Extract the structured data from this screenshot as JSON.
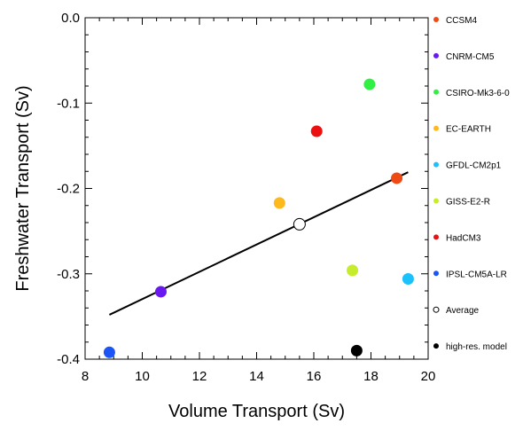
{
  "chart_data": {
    "type": "scatter",
    "xlabel": "Volume Transport (Sv)",
    "ylabel": "Freshwater Transport (Sv)",
    "xlim": [
      8,
      20
    ],
    "ylim": [
      -0.4,
      0.0
    ],
    "xticks": [
      8,
      10,
      12,
      14,
      16,
      18,
      20
    ],
    "xtick_labels": [
      "8",
      "10",
      "12",
      "14",
      "16",
      "18",
      "20"
    ],
    "yticks": [
      0.0,
      -0.1,
      -0.2,
      -0.3,
      -0.4
    ],
    "ytick_labels": [
      "0.0",
      "-0.1",
      "-0.2",
      "-0.3",
      "-0.4"
    ],
    "grid": false,
    "legend_position": "right",
    "series": [
      {
        "name": "CCSM4",
        "color": "#f04a14",
        "marker": "filled-circle",
        "x": 18.9,
        "y": -0.188
      },
      {
        "name": "CNRM-CM5",
        "color": "#6a18f0",
        "marker": "filled-circle",
        "x": 10.65,
        "y": -0.321
      },
      {
        "name": "CSIRO-Mk3-6-0",
        "color": "#2ff043",
        "marker": "filled-circle",
        "x": 17.95,
        "y": -0.078
      },
      {
        "name": "EC-EARTH",
        "color": "#feb91c",
        "marker": "filled-circle",
        "x": 14.8,
        "y": -0.217
      },
      {
        "name": "GFDL-CM2p1",
        "color": "#1bc1fb",
        "marker": "filled-circle",
        "x": 19.3,
        "y": -0.306
      },
      {
        "name": "GISS-E2-R",
        "color": "#c7ec2c",
        "marker": "filled-circle",
        "x": 17.35,
        "y": -0.296
      },
      {
        "name": "HadCM3",
        "color": "#ec1010",
        "marker": "filled-circle",
        "x": 16.1,
        "y": -0.133
      },
      {
        "name": "IPSL-CM5A-LR",
        "color": "#1c55f5",
        "marker": "filled-circle",
        "x": 8.85,
        "y": -0.392
      },
      {
        "name": "Average",
        "color": "#000000",
        "marker": "open-circle",
        "x": 15.5,
        "y": -0.242
      },
      {
        "name": "high-res. model",
        "color": "#000000",
        "marker": "filled-circle",
        "x": 17.5,
        "y": -0.39
      }
    ],
    "regression_line": {
      "x": [
        8.85,
        19.3
      ],
      "y": [
        -0.348,
        -0.181
      ]
    }
  }
}
